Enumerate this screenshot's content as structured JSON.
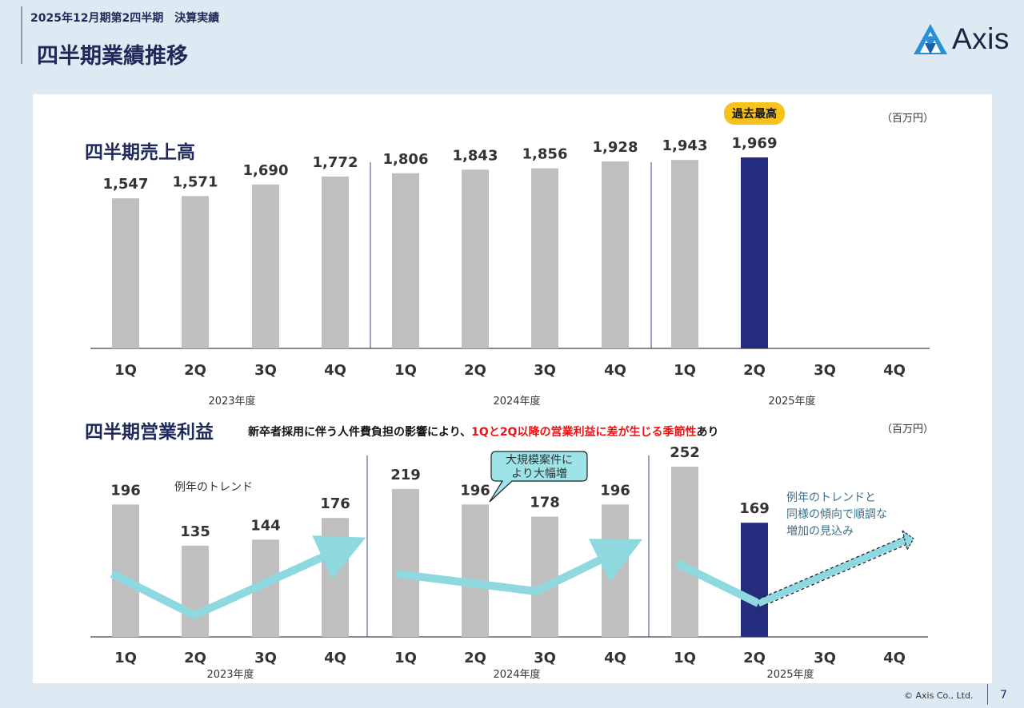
{
  "header": {
    "subtitle": "2025年12月期第2四半期　決算実績",
    "title": "四半期業績推移"
  },
  "logo": {
    "text": "Axis",
    "icon": "axis-mountain-logo-icon"
  },
  "footer": {
    "copyright": "© Axis Co., Ltd.",
    "page": "7"
  },
  "colors": {
    "bar_default": "#bfbfbf",
    "bar_highlight": "#252c7e",
    "trend": "#8ed9e0",
    "badge": "#f7c21b",
    "title": "#1f2a5a"
  },
  "badge": "過去最高",
  "note": {
    "prefix": "新卒者採用に伴う人件費負担の影響により、",
    "red": "1Q と 2Q 以降の営業利益に差が生じる季節性",
    "red_display": "1Qと2Q以降の営業利益に差が生じる季節性",
    "suffix": "あり"
  },
  "annotations": {
    "trend_label": "例年のトレンド",
    "callout_line1": "大規模案件に",
    "callout_line2": "より大幅増",
    "forecast_line1": "例年のトレンドと",
    "forecast_line2": "同様の傾向で順調な",
    "forecast_line3": "増加の見込み"
  },
  "chart_data": [
    {
      "type": "bar",
      "title": "四半期売上高",
      "unit": "（百万円）",
      "categories": [
        "1Q",
        "2Q",
        "3Q",
        "4Q",
        "1Q",
        "2Q",
        "3Q",
        "4Q",
        "1Q",
        "2Q",
        "3Q",
        "4Q"
      ],
      "years": [
        "2023年度",
        "2024年度",
        "2025年度"
      ],
      "values": [
        1547,
        1571,
        1690,
        1772,
        1806,
        1843,
        1856,
        1928,
        1943,
        1969,
        null,
        null
      ],
      "labels": [
        "1,547",
        "1,571",
        "1,690",
        "1,772",
        "1,806",
        "1,843",
        "1,856",
        "1,928",
        "1,943",
        "1,969",
        "",
        ""
      ],
      "highlight_index": 9,
      "ylim": [
        0,
        2150
      ]
    },
    {
      "type": "bar",
      "title": "四半期営業利益",
      "unit": "（百万円）",
      "categories": [
        "1Q",
        "2Q",
        "3Q",
        "4Q",
        "1Q",
        "2Q",
        "3Q",
        "4Q",
        "1Q",
        "2Q",
        "3Q",
        "4Q"
      ],
      "years": [
        "2023年度",
        "2024年度",
        "2025年度"
      ],
      "values": [
        196,
        135,
        144,
        176,
        219,
        196,
        178,
        196,
        252,
        169,
        null,
        null
      ],
      "labels": [
        "196",
        "135",
        "144",
        "176",
        "219",
        "196",
        "178",
        "196",
        "252",
        "169",
        "",
        ""
      ],
      "highlight_index": 9,
      "ylim": [
        0,
        280
      ]
    }
  ]
}
